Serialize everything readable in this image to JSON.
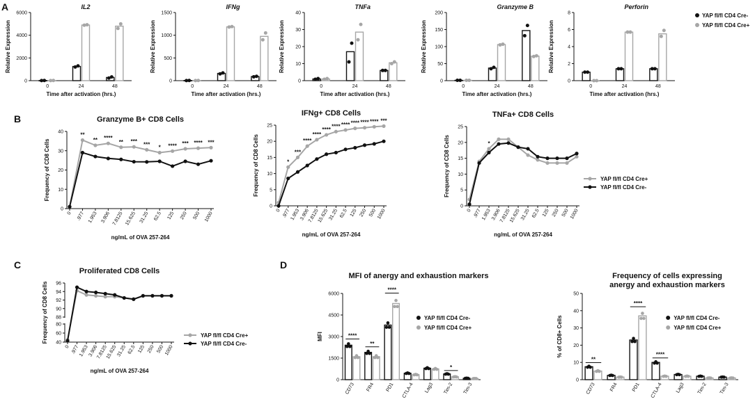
{
  "panel_labels": [
    "A",
    "B",
    "C",
    "D"
  ],
  "colors": {
    "cre_minus": "#111111",
    "cre_plus": "#a6a6a6"
  },
  "chart_data": [
    {
      "id": "A1",
      "type": "bar",
      "title": "IL2",
      "ylabel": "Relative Expression",
      "xlabel": "Time after activation (hrs.)",
      "ylim": [
        0,
        6000
      ],
      "yticks": [
        "0",
        "2000",
        "4000",
        "6000"
      ],
      "categories": [
        "0",
        "24",
        "48"
      ],
      "series": [
        {
          "name": "YAP fl/fl CD4 Cre-",
          "values": [
            10,
            1250,
            280
          ],
          "points": [
            [
              5,
              15
            ],
            [
              1200,
              1300
            ],
            [
              230,
              330
            ]
          ]
        },
        {
          "name": "YAP fl/fl CD4 Cre+",
          "values": [
            10,
            4900,
            4800
          ],
          "points": [
            [
              5,
              15
            ],
            [
              4880,
              4920
            ],
            [
              4600,
              5000
            ]
          ]
        }
      ]
    },
    {
      "id": "A2",
      "type": "bar",
      "title": "IFNg",
      "ylabel": "Relative Expression",
      "xlabel": "Time after activation (hrs.)",
      "ylim": [
        0,
        1500
      ],
      "yticks": [
        "0",
        "500",
        "1000",
        "1500"
      ],
      "categories": [
        "0",
        "24",
        "48"
      ],
      "series": [
        {
          "name": "YAP fl/fl CD4 Cre-",
          "values": [
            3,
            160,
            90
          ],
          "points": [
            [
              2,
              4
            ],
            [
              150,
              170
            ],
            [
              85,
              95
            ]
          ]
        },
        {
          "name": "YAP fl/fl CD4 Cre+",
          "values": [
            3,
            1185,
            975
          ],
          "points": [
            [
              2,
              4
            ],
            [
              1180,
              1190
            ],
            [
              900,
              1050
            ]
          ]
        }
      ]
    },
    {
      "id": "A3",
      "type": "bar",
      "title": "TNFa",
      "ylabel": "Relative Expression",
      "xlabel": "Time after activation (hrs.)",
      "ylim": [
        0,
        40
      ],
      "yticks": [
        "0",
        "10",
        "20",
        "30",
        "40"
      ],
      "categories": [
        "0",
        "24",
        "48"
      ],
      "series": [
        {
          "name": "YAP fl/fl CD4 Cre-",
          "values": [
            1,
            17,
            6
          ],
          "points": [
            [
              0.8,
              1.2
            ],
            [
              11,
              22
            ],
            [
              6,
              6
            ]
          ]
        },
        {
          "name": "YAP fl/fl CD4 Cre+",
          "values": [
            1,
            28.5,
            10.5
          ],
          "points": [
            [
              0.8,
              1.2
            ],
            [
              24,
              33
            ],
            [
              10,
              11
            ]
          ]
        }
      ]
    },
    {
      "id": "A4",
      "type": "bar",
      "title": "Granzyme B",
      "ylabel": "Relative Expression",
      "xlabel": "Time after activation (hrs.)",
      "ylim": [
        0,
        200
      ],
      "yticks": [
        "0",
        "50",
        "100",
        "150",
        "200"
      ],
      "categories": [
        "0",
        "24",
        "48"
      ],
      "series": [
        {
          "name": "YAP fl/fl CD4 Cre-",
          "values": [
            1,
            37,
            147
          ],
          "points": [
            [
              1,
              1
            ],
            [
              35,
              39
            ],
            [
              132,
              162
            ]
          ]
        },
        {
          "name": "YAP fl/fl CD4 Cre+",
          "values": [
            1,
            106,
            72
          ],
          "points": [
            [
              1,
              1
            ],
            [
              105,
              107
            ],
            [
              71,
              73
            ]
          ]
        }
      ]
    },
    {
      "id": "A5",
      "type": "bar",
      "title": "Perforin",
      "ylabel": "Relative Expression",
      "xlabel": "Time after activation (hrs.)",
      "ylim": [
        0,
        8
      ],
      "yticks": [
        "0",
        "2",
        "4",
        "6",
        "8"
      ],
      "categories": [
        "0",
        "24",
        "48"
      ],
      "series": [
        {
          "name": "YAP fl/fl CD4 Cre-",
          "values": [
            1,
            1.4,
            1.4
          ],
          "points": [
            [
              1,
              1
            ],
            [
              1.4,
              1.4
            ],
            [
              1.4,
              1.4
            ]
          ]
        },
        {
          "name": "YAP fl/fl CD4 Cre+",
          "values": [
            0,
            5.7,
            5.5
          ],
          "points": [
            [
              0,
              0
            ],
            [
              5.7,
              5.7
            ],
            [
              5.2,
              5.9
            ]
          ]
        }
      ]
    },
    {
      "id": "B1",
      "type": "line",
      "title": "Granzyme B+ CD8 Cells",
      "ylabel": "Frequency of CD8 Cells",
      "xlabel": "ng/mL of OVA 257-264",
      "ylim": [
        0,
        40
      ],
      "yticks": [
        "0",
        "10",
        "20",
        "30",
        "40"
      ],
      "categories": [
        "0",
        ".977",
        "1.953",
        "3.906",
        "7.8125",
        "15.625",
        "31.25",
        "62.5",
        "125",
        "250",
        "500",
        "1000"
      ],
      "series": [
        {
          "name": "YAP fl/fl CD4 Cre+",
          "values": [
            1,
            35.5,
            32.8,
            33.8,
            31.8,
            32.0,
            30.5,
            29.0,
            29.8,
            31.0,
            31.3,
            31.6
          ]
        },
        {
          "name": "YAP fl/fl CD4 Cre-",
          "values": [
            1,
            29.0,
            27.0,
            26.0,
            25.5,
            24.3,
            24.2,
            24.5,
            22.0,
            24.5,
            23.0,
            24.8
          ]
        }
      ],
      "annotations": [
        "",
        "**",
        "**",
        "****",
        "**",
        "***",
        "***",
        "*",
        "****",
        "***",
        "****",
        "***"
      ]
    },
    {
      "id": "B2",
      "type": "line",
      "title": "IFNg+ CD8 Cells",
      "ylabel": "Frequency of CD8 Cells",
      "xlabel": "ng/mL of OVA 257-264",
      "ylim": [
        0,
        25
      ],
      "yticks": [
        "0",
        "5",
        "10",
        "15",
        "20",
        "25"
      ],
      "categories": [
        "0",
        ".977",
        "1.953",
        "3.906",
        "7.8125",
        "15.625",
        "31.25",
        "62.5",
        "125",
        "250",
        "500",
        "1000"
      ],
      "series": [
        {
          "name": "YAP fl/fl CD4 Cre+",
          "values": [
            1,
            12,
            15,
            18.5,
            20.5,
            22,
            23,
            23.5,
            24,
            24.2,
            24.5,
            24.7
          ]
        },
        {
          "name": "YAP fl/fl CD4 Cre-",
          "values": [
            0,
            8.5,
            10.5,
            12.5,
            14.5,
            16,
            16.5,
            17.5,
            18,
            18.8,
            19.2,
            20
          ]
        }
      ],
      "annotations": [
        "",
        "*",
        "***",
        "****",
        "****",
        "****",
        "****",
        "****",
        "****",
        "****",
        "****",
        "***"
      ]
    },
    {
      "id": "B3",
      "type": "line",
      "title": "TNFa+ CD8 Cells",
      "ylabel": "Frequency of CD8 Cells",
      "xlabel": "ng/mL of OVA 257-264",
      "ylim": [
        0,
        25
      ],
      "yticks": [
        "0",
        "5",
        "10",
        "15",
        "20",
        "25"
      ],
      "categories": [
        "0",
        ".977",
        "1.953",
        "3.906",
        "7.8125",
        "15.625",
        "31.25",
        "62.5",
        "125",
        "250",
        "500",
        "1000"
      ],
      "series": [
        {
          "name": "YAP fl/fl CD4 Cre+",
          "values": [
            2,
            14,
            18,
            21,
            21,
            18.5,
            16,
            14.5,
            13.5,
            13.5,
            13.5,
            15.5
          ]
        },
        {
          "name": "YAP fl/fl CD4 Cre-",
          "values": [
            0.5,
            13.5,
            16.8,
            19.5,
            19.8,
            18.5,
            18,
            15.5,
            15,
            15,
            15,
            16.5
          ]
        }
      ],
      "annotations": [
        "",
        "",
        "*",
        "",
        "",
        "",
        "",
        "",
        "",
        "",
        "",
        ""
      ],
      "legend": {
        "placement": "right",
        "entries": [
          "YAP fl/fl CD4 Cre+",
          "YAP fl/fl CD4 Cre-"
        ]
      }
    },
    {
      "id": "C",
      "type": "line",
      "title": "Proliferated CD8 Cells",
      "ylabel": "Frequency of CD8 Cells",
      "xlabel": "ng/mL of OVA 257-264",
      "ylim": [
        40,
        96
      ],
      "axis_break": true,
      "yticks_upper": [
        "88",
        "90",
        "92",
        "94",
        "96"
      ],
      "yticks_lower": [
        "40",
        "60",
        "80"
      ],
      "categories": [
        "0",
        ".977",
        "1.953",
        "3.906",
        "7.8125",
        "15.625",
        "31.25",
        "62.5",
        "125",
        "250",
        "500",
        "1000"
      ],
      "series": [
        {
          "name": "YAP fl/fl CD4 Cre+",
          "values": [
            45,
            94.2,
            93.2,
            93,
            92.8,
            92.8,
            92.5,
            92.2,
            93,
            93,
            93,
            93
          ]
        },
        {
          "name": "YAP fl/fl CD4 Cre-",
          "values": [
            43,
            95,
            94,
            93.8,
            93.5,
            93.2,
            92.5,
            92.2,
            93,
            93,
            93,
            93
          ]
        }
      ],
      "legend": {
        "placement": "right",
        "entries": [
          "YAP fl/fl CD4 Cre+",
          "YAP fl/fl CD4 Cre-"
        ]
      }
    },
    {
      "id": "D1",
      "type": "bar",
      "title": "MFI of anergy and exhaustion markers",
      "ylabel": "MFI",
      "xlabel": "",
      "ylim": [
        0,
        6000
      ],
      "yticks": [
        "0",
        "1500",
        "3000",
        "4500",
        "6000"
      ],
      "categories": [
        "CD73",
        "FR4",
        "PD1",
        "CTLA-4",
        "Lag3",
        "Tim-2",
        "Tim-3"
      ],
      "series": [
        {
          "name": "YAP fl/fl CD4 Cre-",
          "values": [
            2400,
            1900,
            3800,
            450,
            800,
            400,
            100
          ]
        },
        {
          "name": "YAP fl/fl CD4 Cre+",
          "values": [
            1600,
            1600,
            5300,
            350,
            750,
            200,
            80
          ]
        }
      ],
      "annotations": [
        "****",
        "**",
        "****",
        "",
        "",
        "*",
        ""
      ],
      "legend": {
        "placement": "top-right",
        "entries": [
          "YAP fl/fl CD4 Cre-",
          "YAP fl/fl CD4 Cre+"
        ]
      }
    },
    {
      "id": "D2",
      "type": "bar",
      "title": "Frequency of cells expressing",
      "title2": "anergy and exhaustion markers",
      "ylabel": "% of CD8+ Cells",
      "xlabel": "",
      "ylim": [
        0,
        50
      ],
      "yticks": [
        "0",
        "10",
        "20",
        "30",
        "40",
        "50"
      ],
      "categories": [
        "CD73",
        "FR4",
        "PD1",
        "CTLA-4",
        "Lag3",
        "Tim-2",
        "Tim-3"
      ],
      "series": [
        {
          "name": "YAP fl/fl CD4 Cre-",
          "values": [
            7.5,
            2.5,
            23,
            10,
            3,
            2,
            1.5
          ]
        },
        {
          "name": "YAP fl/fl CD4 Cre+",
          "values": [
            5,
            1.5,
            37,
            2,
            2,
            1,
            1
          ]
        }
      ],
      "annotations": [
        "**",
        "",
        "****",
        "****",
        "",
        "",
        ""
      ],
      "legend": {
        "placement": "top-right",
        "entries": [
          "YAP fl/fl CD4 Cre-",
          "YAP fl/fl CD4 Cre+"
        ]
      }
    }
  ],
  "legend_A": {
    "entries": [
      "YAP fl/fl CD4 Cre-",
      "YAP fl/fl CD4 Cre+"
    ]
  }
}
